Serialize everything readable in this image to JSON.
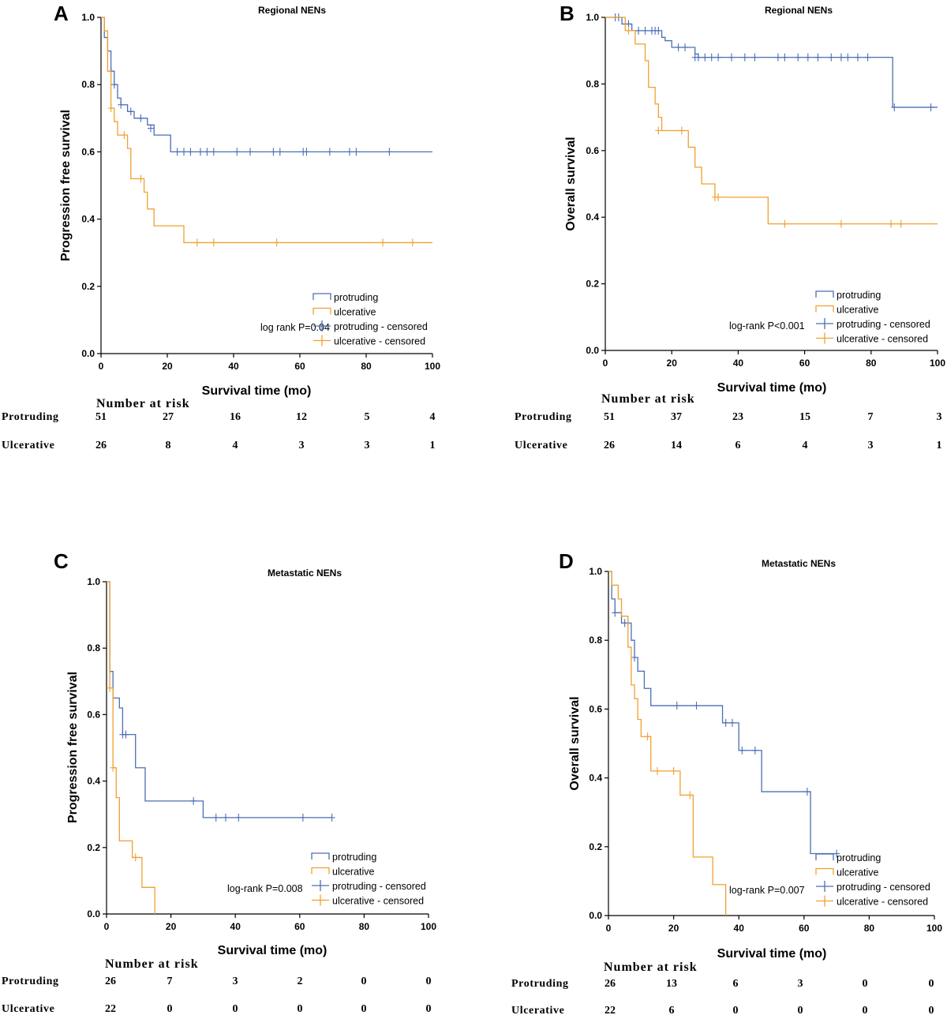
{
  "colors": {
    "protruding": "#4a6fb5",
    "ulcerative": "#f0a030"
  },
  "risk_header": "Number at risk",
  "chart_data": [
    {
      "panel": "A",
      "type": "line",
      "title": "Regional NENs",
      "xlabel": "Survival time (mo)",
      "ylabel": "Progression free survival",
      "xlim": [
        0,
        100
      ],
      "ylim": [
        0,
        1
      ],
      "xticks": [
        "0",
        "20",
        "40",
        "60",
        "80",
        "100"
      ],
      "yticks": [
        "0.0",
        "0.2",
        "0.4",
        "0.6",
        "0.8",
        "1.0"
      ],
      "annotation": "log rank P=0.04",
      "legend": [
        "protruding",
        "ulcerative",
        "protruding - censored",
        "ulcerative - censored"
      ],
      "series": [
        {
          "name": "protruding",
          "steps": [
            [
              0,
              1
            ],
            [
              1,
              0.94
            ],
            [
              2,
              0.9
            ],
            [
              3,
              0.84
            ],
            [
              4,
              0.8
            ],
            [
              5,
              0.76
            ],
            [
              6,
              0.74
            ],
            [
              8,
              0.72
            ],
            [
              10,
              0.7
            ],
            [
              14,
              0.68
            ],
            [
              16,
              0.65
            ],
            [
              21,
              0.6
            ],
            [
              100,
              0.6
            ]
          ],
          "censored": [
            [
              3,
              0.84
            ],
            [
              4,
              0.8
            ],
            [
              6,
              0.74
            ],
            [
              9,
              0.72
            ],
            [
              12,
              0.7
            ],
            [
              15,
              0.67
            ],
            [
              23,
              0.6
            ],
            [
              25,
              0.6
            ],
            [
              27,
              0.6
            ],
            [
              30,
              0.6
            ],
            [
              32,
              0.6
            ],
            [
              34,
              0.6
            ],
            [
              41,
              0.6
            ],
            [
              45,
              0.6
            ],
            [
              52,
              0.6
            ],
            [
              54,
              0.6
            ],
            [
              61,
              0.6
            ],
            [
              62,
              0.6
            ],
            [
              69,
              0.6
            ],
            [
              75,
              0.6
            ],
            [
              77,
              0.6
            ],
            [
              87,
              0.6
            ]
          ]
        },
        {
          "name": "ulcerative",
          "steps": [
            [
              0,
              1
            ],
            [
              1,
              0.96
            ],
            [
              2,
              0.84
            ],
            [
              3,
              0.73
            ],
            [
              4,
              0.69
            ],
            [
              5,
              0.65
            ],
            [
              8,
              0.61
            ],
            [
              9,
              0.52
            ],
            [
              13,
              0.48
            ],
            [
              14,
              0.43
            ],
            [
              16,
              0.38
            ],
            [
              25,
              0.33
            ],
            [
              100,
              0.33
            ]
          ],
          "censored": [
            [
              3,
              0.73
            ],
            [
              7,
              0.65
            ],
            [
              12,
              0.52
            ],
            [
              29,
              0.33
            ],
            [
              34,
              0.33
            ],
            [
              53,
              0.33
            ],
            [
              85,
              0.33
            ],
            [
              94,
              0.33
            ]
          ]
        }
      ],
      "risk_table": {
        "protruding_label": "Protruding",
        "protruding": [
          "51",
          "27",
          "16",
          "12",
          "5",
          "4"
        ],
        "ulcerative_label": "Ulcerative",
        "ulcerative": [
          "26",
          "8",
          "4",
          "3",
          "3",
          "1"
        ]
      }
    },
    {
      "panel": "B",
      "type": "line",
      "title": "Regional NENs",
      "xlabel": "Survival time (mo)",
      "ylabel": "Overall survival",
      "xlim": [
        0,
        100
      ],
      "ylim": [
        0,
        1
      ],
      "xticks": [
        "0",
        "20",
        "40",
        "60",
        "80",
        "100"
      ],
      "yticks": [
        "0.0",
        "0.2",
        "0.4",
        "0.6",
        "0.8",
        "1.0"
      ],
      "annotation": "log-rank P<0.001",
      "legend": [
        "protruding",
        "ulcerative",
        "protruding - censored",
        "ulcerative - censored"
      ],
      "series": [
        {
          "name": "protruding",
          "steps": [
            [
              0,
              1
            ],
            [
              5,
              0.98
            ],
            [
              8,
              0.96
            ],
            [
              17,
              0.94
            ],
            [
              18,
              0.93
            ],
            [
              20,
              0.91
            ],
            [
              25,
              0.91
            ],
            [
              27,
              0.89
            ],
            [
              28,
              0.88
            ],
            [
              86,
              0.88
            ],
            [
              86.5,
              0.73
            ],
            [
              100,
              0.73
            ]
          ],
          "censored": [
            [
              3,
              1
            ],
            [
              4,
              1
            ],
            [
              7,
              0.98
            ],
            [
              10,
              0.96
            ],
            [
              12,
              0.96
            ],
            [
              14,
              0.96
            ],
            [
              15,
              0.96
            ],
            [
              16,
              0.96
            ],
            [
              22,
              0.91
            ],
            [
              24,
              0.91
            ],
            [
              27,
              0.88
            ],
            [
              28,
              0.88
            ],
            [
              30,
              0.88
            ],
            [
              32,
              0.88
            ],
            [
              34,
              0.88
            ],
            [
              38,
              0.88
            ],
            [
              42,
              0.88
            ],
            [
              45,
              0.88
            ],
            [
              52,
              0.88
            ],
            [
              54,
              0.88
            ],
            [
              58,
              0.88
            ],
            [
              61,
              0.88
            ],
            [
              64,
              0.88
            ],
            [
              68,
              0.88
            ],
            [
              71,
              0.88
            ],
            [
              73,
              0.88
            ],
            [
              76,
              0.88
            ],
            [
              79,
              0.88
            ],
            [
              87,
              0.73
            ],
            [
              98,
              0.73
            ]
          ]
        },
        {
          "name": "ulcerative",
          "steps": [
            [
              0,
              1
            ],
            [
              6,
              0.96
            ],
            [
              9,
              0.92
            ],
            [
              12,
              0.87
            ],
            [
              13,
              0.79
            ],
            [
              15,
              0.74
            ],
            [
              16,
              0.7
            ],
            [
              17,
              0.66
            ],
            [
              25,
              0.61
            ],
            [
              27,
              0.55
            ],
            [
              29,
              0.5
            ],
            [
              33,
              0.46
            ],
            [
              49,
              0.38
            ],
            [
              100,
              0.38
            ]
          ],
          "censored": [
            [
              7,
              0.96
            ],
            [
              16,
              0.66
            ],
            [
              23,
              0.66
            ],
            [
              33,
              0.46
            ],
            [
              34,
              0.46
            ],
            [
              54,
              0.38
            ],
            [
              71,
              0.38
            ],
            [
              86,
              0.38
            ],
            [
              89,
              0.38
            ]
          ]
        }
      ],
      "risk_table": {
        "protruding_label": "Protruding",
        "protruding": [
          "51",
          "37",
          "23",
          "15",
          "7",
          "3"
        ],
        "ulcerative_label": "Ulcerative",
        "ulcerative": [
          "26",
          "14",
          "6",
          "4",
          "3",
          "1"
        ]
      }
    },
    {
      "panel": "C",
      "type": "line",
      "title": "Metastatic NENs",
      "xlabel": "Survival time (mo)",
      "ylabel": "Progression free survival",
      "xlim": [
        0,
        100
      ],
      "ylim": [
        0,
        1
      ],
      "xticks": [
        "0",
        "20",
        "40",
        "60",
        "80",
        "100"
      ],
      "yticks": [
        "0.0",
        "0.2",
        "0.4",
        "0.6",
        "0.8",
        "1.0"
      ],
      "annotation": "log-rank P=0.008",
      "legend": [
        "protruding",
        "ulcerative",
        "protruding - censored",
        "ulcerative - censored"
      ],
      "series": [
        {
          "name": "protruding",
          "steps": [
            [
              0,
              1
            ],
            [
              1,
              0.73
            ],
            [
              2,
              0.65
            ],
            [
              4,
              0.62
            ],
            [
              5,
              0.54
            ],
            [
              9,
              0.44
            ],
            [
              12,
              0.34
            ],
            [
              30,
              0.29
            ],
            [
              70,
              0.29
            ]
          ],
          "censored": [
            [
              5,
              0.54
            ],
            [
              6,
              0.54
            ],
            [
              27,
              0.34
            ],
            [
              34,
              0.29
            ],
            [
              37,
              0.29
            ],
            [
              41,
              0.29
            ],
            [
              61,
              0.29
            ],
            [
              70,
              0.29
            ]
          ]
        },
        {
          "name": "ulcerative",
          "steps": [
            [
              0,
              1
            ],
            [
              1,
              0.68
            ],
            [
              2,
              0.44
            ],
            [
              3,
              0.35
            ],
            [
              4,
              0.22
            ],
            [
              8,
              0.17
            ],
            [
              11,
              0.08
            ],
            [
              15,
              0
            ],
            [
              15,
              0
            ]
          ],
          "censored": [
            [
              1,
              0.68
            ],
            [
              2,
              0.44
            ],
            [
              9,
              0.17
            ]
          ]
        }
      ],
      "risk_table": {
        "protruding_label": "Protruding",
        "protruding": [
          "26",
          "7",
          "3",
          "2",
          "0",
          "0"
        ],
        "ulcerative_label": "Ulcerative",
        "ulcerative": [
          "22",
          "0",
          "0",
          "0",
          "0",
          "0"
        ]
      }
    },
    {
      "panel": "D",
      "type": "line",
      "title": "Metastatic NENs",
      "xlabel": "Survival time (mo)",
      "ylabel": "Overall survival",
      "xlim": [
        0,
        100
      ],
      "ylim": [
        0,
        1
      ],
      "xticks": [
        "0",
        "20",
        "40",
        "60",
        "80",
        "100"
      ],
      "yticks": [
        "0.0",
        "0.2",
        "0.4",
        "0.6",
        "0.8",
        "1.0"
      ],
      "annotation": "log-rank P=0.007",
      "legend": [
        "protruding",
        "ulcerative",
        "protruding - censored",
        "ulcerative - censored"
      ],
      "series": [
        {
          "name": "protruding",
          "steps": [
            [
              0,
              1
            ],
            [
              1,
              0.92
            ],
            [
              2,
              0.88
            ],
            [
              4,
              0.85
            ],
            [
              7,
              0.8
            ],
            [
              8,
              0.75
            ],
            [
              9,
              0.71
            ],
            [
              11,
              0.66
            ],
            [
              13,
              0.61
            ],
            [
              35,
              0.56
            ],
            [
              40,
              0.48
            ],
            [
              47,
              0.36
            ],
            [
              62,
              0.18
            ],
            [
              70,
              0.18
            ]
          ],
          "censored": [
            [
              2,
              0.88
            ],
            [
              5,
              0.85
            ],
            [
              6,
              0.85
            ],
            [
              8,
              0.75
            ],
            [
              21,
              0.61
            ],
            [
              27,
              0.61
            ],
            [
              36,
              0.56
            ],
            [
              38,
              0.56
            ],
            [
              41,
              0.48
            ],
            [
              45,
              0.48
            ],
            [
              61,
              0.36
            ],
            [
              70,
              0.18
            ]
          ]
        },
        {
          "name": "ulcerative",
          "steps": [
            [
              0,
              1
            ],
            [
              1,
              0.96
            ],
            [
              3,
              0.92
            ],
            [
              4,
              0.87
            ],
            [
              6,
              0.78
            ],
            [
              7,
              0.67
            ],
            [
              8,
              0.63
            ],
            [
              9,
              0.57
            ],
            [
              10,
              0.52
            ],
            [
              13,
              0.42
            ],
            [
              22,
              0.35
            ],
            [
              25,
              0.35
            ],
            [
              26,
              0.17
            ],
            [
              32,
              0.09
            ],
            [
              36,
              0
            ],
            [
              36,
              0
            ]
          ],
          "censored": [
            [
              12,
              0.52
            ],
            [
              15,
              0.42
            ],
            [
              20,
              0.42
            ],
            [
              25,
              0.35
            ]
          ]
        }
      ],
      "risk_table": {
        "protruding_label": "Protruding",
        "protruding": [
          "26",
          "13",
          "6",
          "3",
          "0",
          "0"
        ],
        "ulcerative_label": "Ulcerative",
        "ulcerative": [
          "22",
          "6",
          "0",
          "0",
          "0",
          "0"
        ]
      }
    }
  ]
}
